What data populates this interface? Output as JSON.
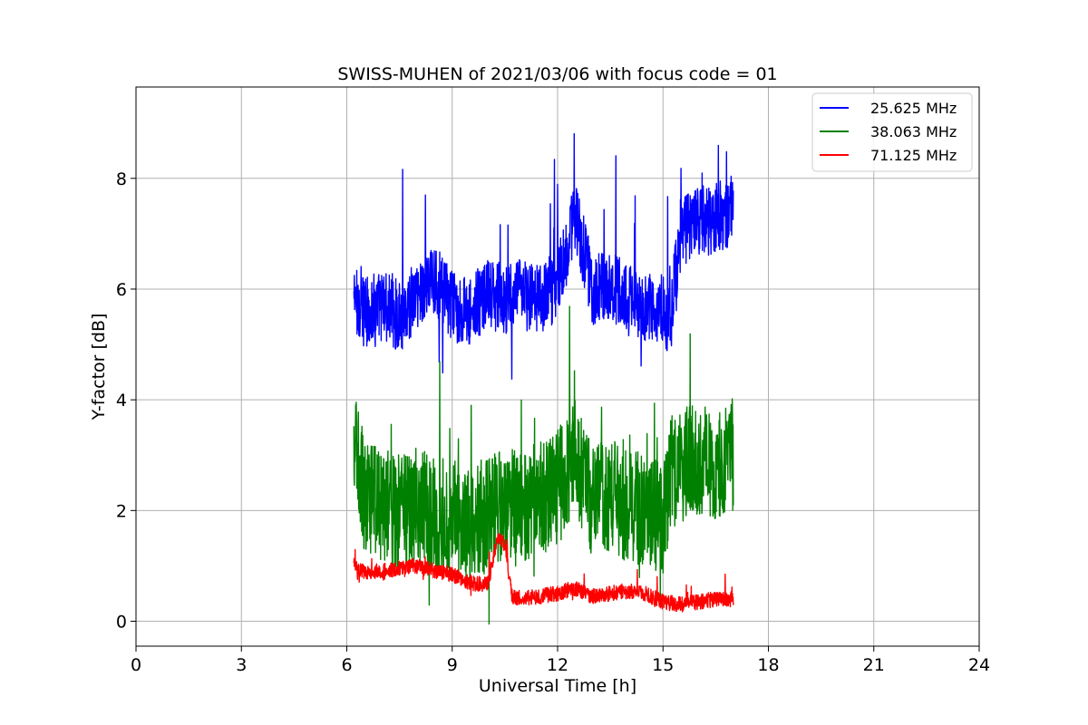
{
  "chart_data": {
    "type": "line",
    "title": "SWISS-MUHEN of 2021/03/06 with focus code = 01",
    "xlabel": "Universal Time [h]",
    "ylabel": "Y-factor [dB]",
    "xlim": [
      0,
      24
    ],
    "ylim": [
      -0.45,
      9.65
    ],
    "xticks": [
      0,
      3,
      6,
      9,
      12,
      15,
      18,
      21,
      24
    ],
    "xtick_labels": [
      "0",
      "3",
      "6",
      "9",
      "12",
      "15",
      "18",
      "21",
      "24"
    ],
    "yticks": [
      0,
      2,
      4,
      6,
      8
    ],
    "ytick_labels": [
      "0",
      "2",
      "4",
      "6",
      "8"
    ],
    "grid": true,
    "legend_position": "top-right",
    "series": [
      {
        "name": "25.625 MHz",
        "color": "#0000ff",
        "x": [
          6.2,
          6.5,
          7.0,
          7.5,
          8.0,
          8.5,
          9.0,
          9.5,
          10.0,
          10.5,
          11.0,
          11.5,
          12.0,
          12.5,
          13.0,
          13.5,
          14.0,
          14.5,
          15.0,
          15.2,
          15.5,
          16.0,
          16.5,
          17.0
        ],
        "values": [
          5.8,
          5.6,
          5.7,
          5.5,
          5.9,
          6.2,
          5.7,
          5.6,
          5.9,
          5.8,
          5.9,
          5.8,
          6.1,
          7.3,
          6.0,
          6.1,
          5.8,
          5.7,
          5.6,
          5.4,
          7.0,
          7.2,
          7.3,
          7.4
        ]
      },
      {
        "name": "38.063 MHz",
        "color": "#008000",
        "x": [
          6.2,
          6.5,
          7.0,
          7.5,
          8.0,
          8.5,
          9.0,
          9.5,
          10.0,
          10.5,
          11.0,
          11.5,
          12.0,
          12.5,
          13.0,
          13.5,
          14.0,
          14.5,
          15.0,
          15.2,
          15.5,
          16.0,
          16.5,
          17.0
        ],
        "values": [
          3.2,
          2.3,
          2.1,
          2.0,
          2.1,
          1.9,
          1.9,
          1.8,
          1.9,
          2.1,
          2.0,
          2.3,
          2.4,
          3.0,
          2.2,
          2.3,
          2.1,
          2.0,
          1.9,
          2.6,
          2.8,
          2.9,
          2.9,
          3.0
        ]
      },
      {
        "name": "71.125 MHz",
        "color": "#ff0000",
        "x": [
          6.2,
          6.5,
          7.0,
          7.5,
          8.0,
          8.5,
          9.0,
          9.5,
          10.0,
          10.3,
          10.5,
          10.7,
          11.0,
          11.5,
          12.0,
          12.5,
          13.0,
          13.5,
          14.0,
          14.5,
          15.0,
          15.5,
          16.0,
          16.5,
          17.0
        ],
        "values": [
          1.0,
          0.9,
          0.9,
          0.95,
          1.0,
          0.9,
          0.85,
          0.7,
          0.65,
          1.5,
          1.4,
          0.45,
          0.4,
          0.45,
          0.5,
          0.6,
          0.45,
          0.5,
          0.55,
          0.5,
          0.35,
          0.3,
          0.35,
          0.4,
          0.4
        ]
      }
    ]
  }
}
